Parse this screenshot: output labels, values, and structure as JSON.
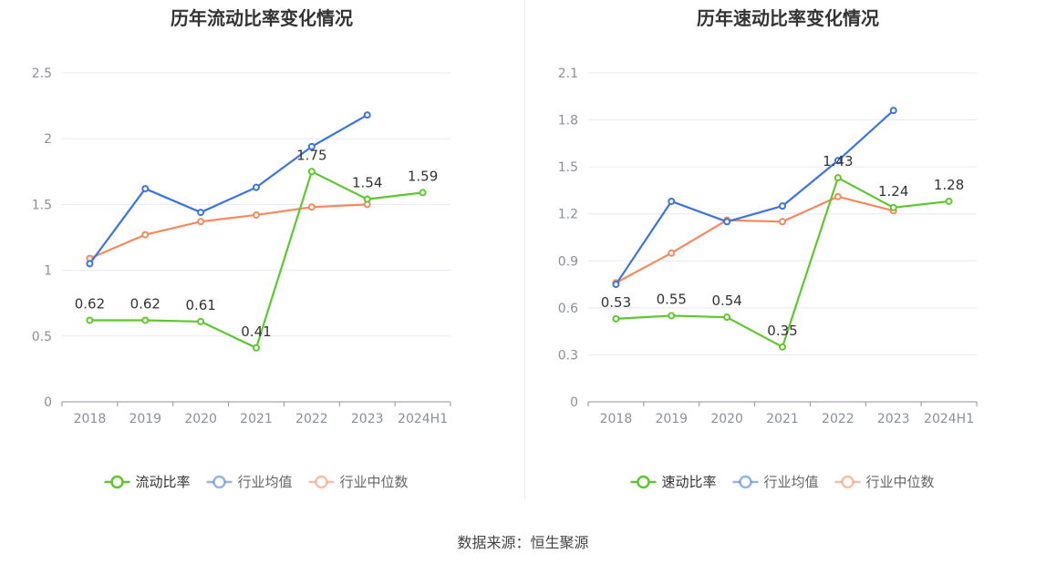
{
  "source_text": "数据来源：恒生聚源",
  "chart_data": [
    {
      "type": "line",
      "title": "历年流动比率变化情况",
      "categories": [
        "2018",
        "2019",
        "2020",
        "2021",
        "2022",
        "2023",
        "2024H1"
      ],
      "ylim": [
        0,
        2.5
      ],
      "yticks": [
        0,
        0.5,
        1,
        1.5,
        2,
        2.5
      ],
      "ytick_labels": [
        "0",
        "0.5",
        "1",
        "1.5",
        "2",
        "2.5"
      ],
      "grid": true,
      "legend_position": "bottom",
      "series": [
        {
          "name": "流动比率",
          "color": "#5cc82b",
          "values": [
            0.62,
            0.62,
            0.61,
            0.41,
            1.75,
            1.54,
            1.59
          ],
          "labels": [
            "0.62",
            "0.62",
            "0.61",
            "0.41",
            "1.75",
            "1.54",
            "1.59"
          ]
        },
        {
          "name": "行业均值",
          "color": "#3b74e0",
          "values": [
            1.05,
            1.62,
            1.44,
            1.63,
            1.94,
            2.18,
            null
          ]
        },
        {
          "name": "行业中位数",
          "color": "#f4895e",
          "values": [
            1.09,
            1.27,
            1.37,
            1.42,
            1.48,
            1.5,
            null
          ]
        }
      ]
    },
    {
      "type": "line",
      "title": "历年速动比率变化情况",
      "categories": [
        "2018",
        "2019",
        "2020",
        "2021",
        "2022",
        "2023",
        "2024H1"
      ],
      "ylim": [
        0,
        2.1
      ],
      "yticks": [
        0,
        0.3,
        0.6,
        0.9,
        1.2,
        1.5,
        1.8,
        2.1
      ],
      "ytick_labels": [
        "0",
        "0.3",
        "0.6",
        "0.9",
        "1.2",
        "1.5",
        "1.8",
        "2.1"
      ],
      "grid": true,
      "legend_position": "bottom",
      "series": [
        {
          "name": "速动比率",
          "color": "#5cc82b",
          "values": [
            0.53,
            0.55,
            0.54,
            0.35,
            1.43,
            1.24,
            1.28
          ],
          "labels": [
            "0.53",
            "0.55",
            "0.54",
            "0.35",
            "1.43",
            "1.24",
            "1.28"
          ]
        },
        {
          "name": "行业均值",
          "color": "#3b74e0",
          "values": [
            0.75,
            1.28,
            1.15,
            1.25,
            1.54,
            1.86,
            null
          ]
        },
        {
          "name": "行业中位数",
          "color": "#f4895e",
          "values": [
            0.76,
            0.95,
            1.16,
            1.15,
            1.31,
            1.22,
            null
          ]
        }
      ]
    }
  ]
}
